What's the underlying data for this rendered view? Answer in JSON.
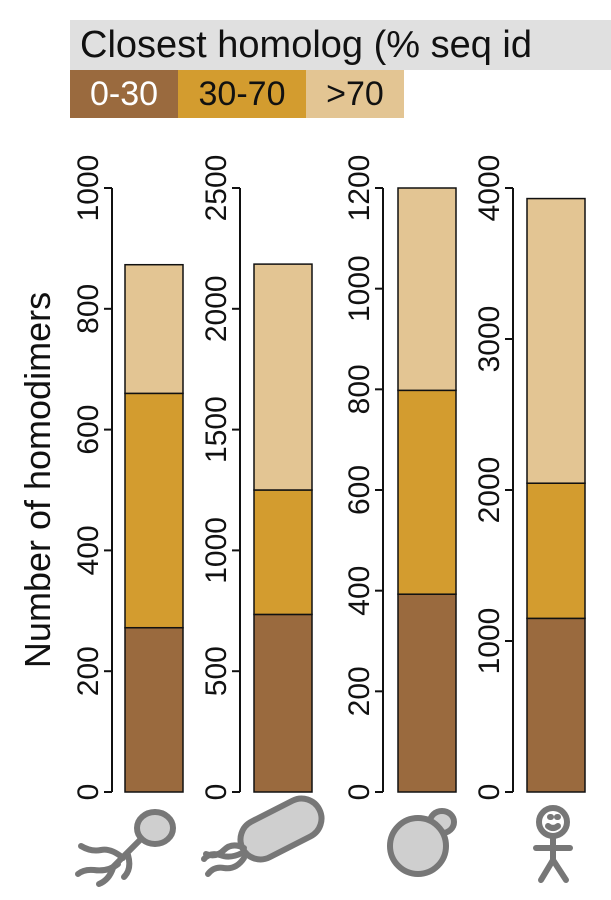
{
  "legend": {
    "title": "Closest homolog (% seq id",
    "items": [
      {
        "label": "0-30",
        "color": "#9a6a3e"
      },
      {
        "label": "30-70",
        "color": "#d39c2f"
      },
      {
        "label": ">70",
        "color": "#e3c593"
      }
    ]
  },
  "chart_data": [
    {
      "type": "bar",
      "stacked": true,
      "organism_icon": "phage-icon",
      "ylabel": "Number of homodimers",
      "ylim": [
        0,
        1000
      ],
      "yticks": [
        0,
        200,
        400,
        600,
        800,
        1000
      ],
      "series": [
        {
          "name": "0-30",
          "values": [
            272
          ]
        },
        {
          "name": "30-70",
          "values": [
            388
          ]
        },
        {
          "name": ">70",
          "values": [
            213
          ]
        }
      ]
    },
    {
      "type": "bar",
      "stacked": true,
      "organism_icon": "bacterium-icon",
      "ylabel": "",
      "ylim": [
        0,
        2500
      ],
      "yticks": [
        0,
        500,
        1000,
        1500,
        2000,
        2500
      ],
      "series": [
        {
          "name": "0-30",
          "values": [
            735
          ]
        },
        {
          "name": "30-70",
          "values": [
            515
          ]
        },
        {
          "name": ">70",
          "values": [
            935
          ]
        }
      ]
    },
    {
      "type": "bar",
      "stacked": true,
      "organism_icon": "yeast-icon",
      "ylabel": "",
      "ylim": [
        0,
        1200
      ],
      "yticks": [
        0,
        200,
        400,
        600,
        800,
        1000,
        1200
      ],
      "series": [
        {
          "name": "0-30",
          "values": [
            393
          ]
        },
        {
          "name": "30-70",
          "values": [
            405
          ]
        },
        {
          "name": ">70",
          "values": [
            402
          ]
        }
      ]
    },
    {
      "type": "bar",
      "stacked": true,
      "organism_icon": "human-icon",
      "ylabel": "",
      "ylim": [
        0,
        4000
      ],
      "yticks": [
        0,
        1000,
        2000,
        3000,
        4000
      ],
      "series": [
        {
          "name": "0-30",
          "values": [
            1150
          ]
        },
        {
          "name": "30-70",
          "values": [
            895
          ]
        },
        {
          "name": ">70",
          "values": [
            1885
          ]
        }
      ]
    }
  ]
}
